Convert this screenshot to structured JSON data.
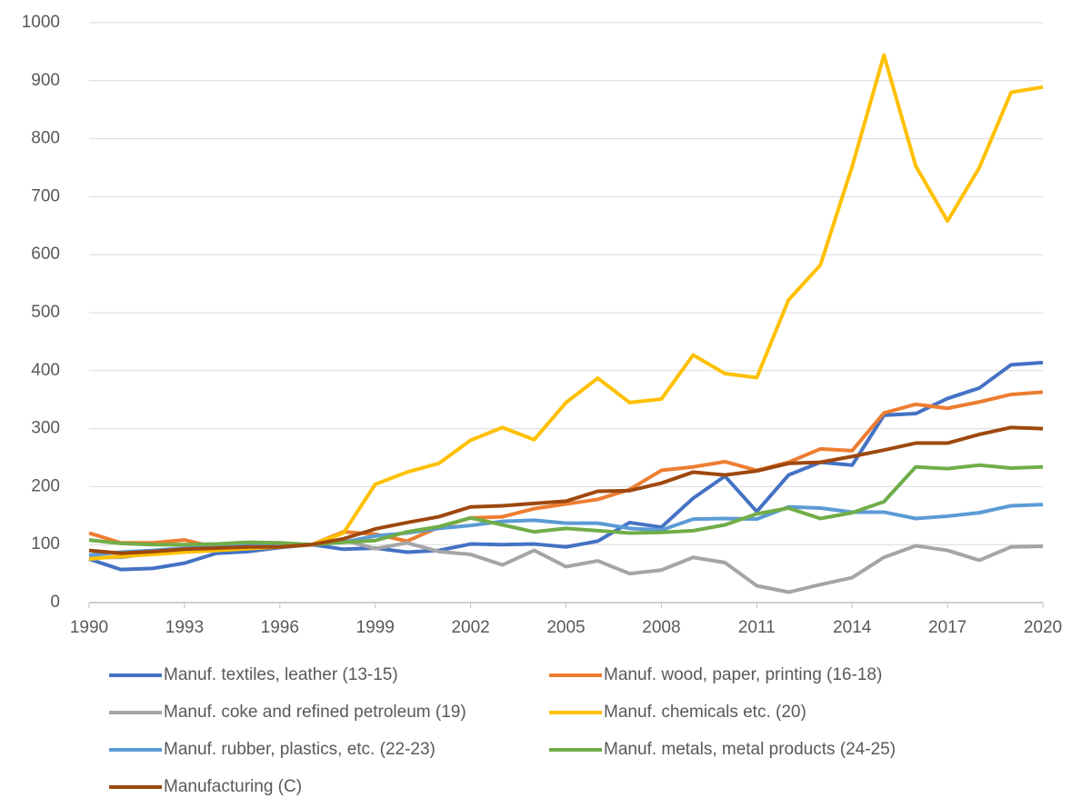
{
  "chart_data": {
    "type": "line",
    "x": [
      1990,
      1991,
      1992,
      1993,
      1994,
      1995,
      1996,
      1997,
      1998,
      1999,
      2000,
      2001,
      2002,
      2003,
      2004,
      2005,
      2006,
      2007,
      2008,
      2009,
      2010,
      2011,
      2012,
      2013,
      2014,
      2015,
      2016,
      2017,
      2018,
      2019,
      2020
    ],
    "xlim": [
      1990,
      2020
    ],
    "xticks": [
      1990,
      1993,
      1996,
      1999,
      2002,
      2005,
      2008,
      2011,
      2014,
      2017,
      2020
    ],
    "ylim": [
      0,
      1000
    ],
    "yticks": [
      0,
      100,
      200,
      300,
      400,
      500,
      600,
      700,
      800,
      900,
      1000
    ],
    "grid": true,
    "legend": "bottom",
    "series": [
      {
        "name": "Manuf. textiles, leather (13-15)",
        "color": "#4472c4",
        "values": [
          75,
          57,
          59,
          68,
          85,
          88,
          95,
          100,
          92,
          94,
          87,
          90,
          101,
          100,
          101,
          96,
          106,
          138,
          130,
          180,
          218,
          157,
          220,
          242,
          237,
          323,
          326,
          352,
          370,
          410,
          414
        ]
      },
      {
        "name": "Manuf. wood, paper, printing (16-18)",
        "color": "#ed7d31",
        "values": [
          120,
          103,
          103,
          108,
          95,
          96,
          97,
          100,
          122,
          118,
          106,
          130,
          146,
          148,
          162,
          170,
          178,
          195,
          228,
          234,
          243,
          228,
          242,
          265,
          262,
          327,
          342,
          335,
          346,
          359,
          363
        ]
      },
      {
        "name": "Manuf. coke and refined petroleum (19)",
        "color": "#a5a5a5",
        "values": [
          78,
          78,
          85,
          92,
          95,
          96,
          97,
          100,
          108,
          93,
          103,
          88,
          83,
          65,
          90,
          62,
          72,
          50,
          56,
          78,
          69,
          29,
          18,
          31,
          43,
          78,
          98,
          90,
          73,
          96,
          97
        ]
      },
      {
        "name": "Manuf. chemicals etc. (20)",
        "color": "#ffc000",
        "values": [
          75,
          80,
          83,
          87,
          90,
          93,
          96,
          100,
          120,
          204,
          225,
          240,
          280,
          302,
          281,
          345,
          387,
          345,
          351,
          427,
          395,
          388,
          522,
          582,
          752,
          944,
          753,
          658,
          750,
          880,
          889
        ]
      },
      {
        "name": "Manuf. rubber, plastics, etc. (22-23)",
        "color": "#5b9bd5",
        "values": [
          82,
          87,
          90,
          94,
          97,
          100,
          100,
          100,
          104,
          115,
          120,
          128,
          133,
          140,
          142,
          137,
          137,
          128,
          125,
          144,
          145,
          144,
          165,
          163,
          156,
          156,
          145,
          149,
          155,
          167,
          169
        ]
      },
      {
        "name": "Manuf. metals, metal products (24-25)",
        "color": "#70ad47",
        "values": [
          108,
          102,
          100,
          100,
          101,
          104,
          103,
          100,
          104,
          107,
          122,
          131,
          146,
          134,
          122,
          128,
          124,
          120,
          121,
          124,
          134,
          153,
          163,
          145,
          155,
          174,
          234,
          231,
          237,
          232,
          234
        ]
      },
      {
        "name": "Manufacturing (C)",
        "color": "#9e480e",
        "values": [
          90,
          85,
          88,
          92,
          94,
          96,
          96,
          100,
          110,
          127,
          138,
          148,
          165,
          167,
          171,
          175,
          192,
          193,
          206,
          225,
          220,
          227,
          240,
          242,
          252,
          263,
          275,
          275,
          290,
          302,
          300
        ]
      }
    ]
  }
}
